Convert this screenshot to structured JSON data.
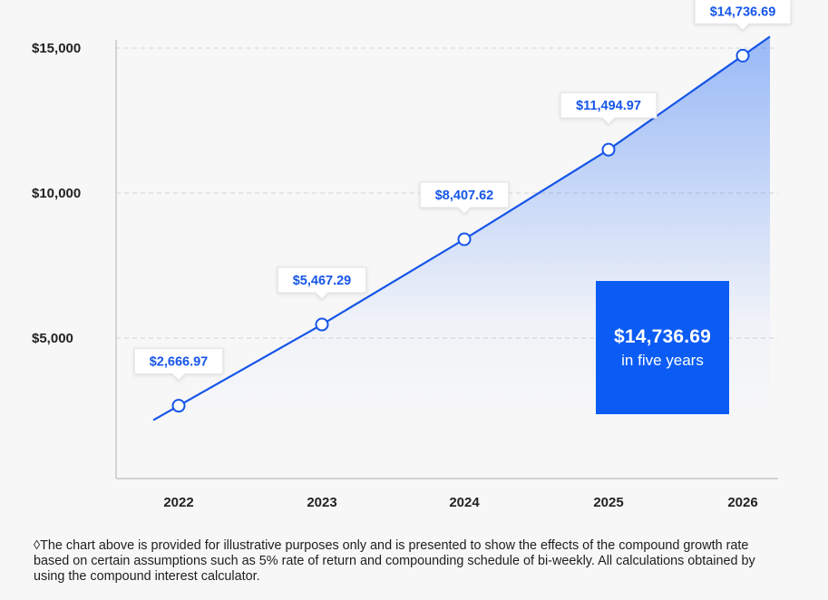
{
  "chart_data": {
    "type": "area",
    "title": "",
    "xlabel": "",
    "ylabel": "",
    "categories": [
      "2022",
      "2023",
      "2024",
      "2025",
      "2026"
    ],
    "series": [
      {
        "values": [
          2666.97,
          5467.29,
          8407.62,
          11494.97,
          14736.69
        ],
        "labels": [
          "$2,666.97",
          "$5,467.29",
          "$8,407.62",
          "$11,494.97",
          "$14,736.69"
        ]
      }
    ],
    "yticks": [
      5000,
      10000,
      15000
    ],
    "ytick_labels": [
      "$5,000",
      "$10,000",
      "$15,000"
    ],
    "ylim": [
      0,
      15000
    ],
    "grid": "horizontal-dashed",
    "line_color": "#1655e8",
    "fill_color": "#0b5cf5"
  },
  "callout": {
    "value": "$14,736.69",
    "caption": "in five years",
    "color": "#0b5cf5"
  },
  "footnote": "◊The chart above is provided for illustrative purposes only and is presented to show the effects of the compound growth rate based on certain assumptions such as 5% rate of return and compounding schedule of bi-weekly. All calculations obtained by using the compound interest calculator."
}
